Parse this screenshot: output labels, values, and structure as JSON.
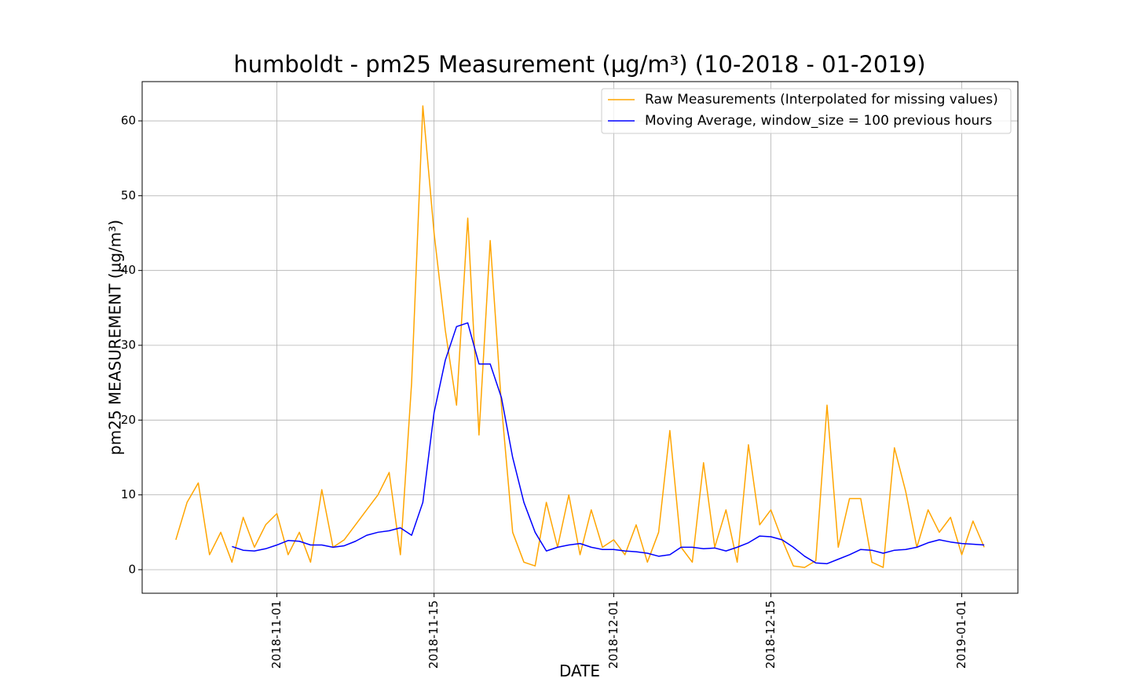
{
  "chart_data": {
    "type": "line",
    "title": "humboldt - pm25 Measurement (µg/m³) (10-2018 - 01-2019)",
    "xlabel": "DATE",
    "ylabel": "pm25 MEASUREMENT (µg/m³)",
    "x": [
      "2018-10-23",
      "2018-10-24",
      "2018-10-25",
      "2018-10-26",
      "2018-10-27",
      "2018-10-28",
      "2018-10-29",
      "2018-10-30",
      "2018-10-31",
      "2018-11-01",
      "2018-11-02",
      "2018-11-03",
      "2018-11-04",
      "2018-11-05",
      "2018-11-06",
      "2018-11-07",
      "2018-11-08",
      "2018-11-09",
      "2018-11-10",
      "2018-11-11",
      "2018-11-12",
      "2018-11-13",
      "2018-11-14",
      "2018-11-15",
      "2018-11-16",
      "2018-11-17",
      "2018-11-18",
      "2018-11-19",
      "2018-11-20",
      "2018-11-21",
      "2018-11-22",
      "2018-11-23",
      "2018-11-24",
      "2018-11-25",
      "2018-11-26",
      "2018-11-27",
      "2018-11-28",
      "2018-11-29",
      "2018-11-30",
      "2018-12-01",
      "2018-12-02",
      "2018-12-03",
      "2018-12-04",
      "2018-12-05",
      "2018-12-06",
      "2018-12-07",
      "2018-12-08",
      "2018-12-09",
      "2018-12-10",
      "2018-12-11",
      "2018-12-12",
      "2018-12-13",
      "2018-12-14",
      "2018-12-15",
      "2018-12-16",
      "2018-12-17",
      "2018-12-18",
      "2018-12-19",
      "2018-12-20",
      "2018-12-21",
      "2018-12-22",
      "2018-12-23",
      "2018-12-24",
      "2018-12-25",
      "2018-12-26",
      "2018-12-27",
      "2018-12-28",
      "2018-12-29",
      "2018-12-30",
      "2018-12-31",
      "2019-01-01",
      "2019-01-02",
      "2019-01-03"
    ],
    "series": [
      {
        "name": "Raw Measurements (Interpolated for missing values)",
        "color": "#ffa500",
        "values": [
          4,
          9,
          11.6,
          2,
          5,
          1,
          7,
          3,
          6,
          7.5,
          2,
          5,
          1,
          10.7,
          3,
          4,
          6,
          8,
          10,
          13,
          2,
          25,
          62,
          45,
          32,
          22,
          47,
          18,
          44,
          22,
          5,
          1,
          0.5,
          9,
          3,
          10,
          2,
          8,
          3,
          4,
          2,
          6,
          1,
          5,
          18.6,
          3,
          1,
          14.3,
          3,
          8,
          1,
          16.7,
          6,
          8,
          4,
          0.5,
          0.3,
          1.2,
          22,
          3,
          9.5,
          9.5,
          1,
          0.3,
          16.3,
          10.5,
          3,
          8,
          5,
          7,
          2,
          6.5,
          3
        ]
      },
      {
        "name": "Moving Average, window_size = 100 previous hours",
        "color": "#0000ff",
        "values": [
          null,
          null,
          null,
          null,
          null,
          3.1,
          2.6,
          2.5,
          2.8,
          3.3,
          3.9,
          3.8,
          3.3,
          3.3,
          3.0,
          3.2,
          3.8,
          4.6,
          5.0,
          5.2,
          5.6,
          4.6,
          9,
          21,
          28,
          32.5,
          33,
          27.5,
          27.5,
          23,
          15,
          9,
          5,
          2.5,
          3.0,
          3.3,
          3.5,
          3.0,
          2.7,
          2.7,
          2.5,
          2.4,
          2.2,
          1.8,
          2.0,
          3.0,
          3.0,
          2.8,
          2.9,
          2.5,
          3.0,
          3.6,
          4.5,
          4.4,
          4.0,
          3.0,
          1.8,
          0.9,
          0.8,
          1.4,
          2.0,
          2.7,
          2.6,
          2.2,
          2.6,
          2.7,
          3.0,
          3.6,
          4.0,
          3.7,
          3.5,
          3.4,
          3.3
        ]
      }
    ],
    "xlim": [
      "2018-10-20",
      "2019-01-06"
    ],
    "xticks": [
      "2018-11-01",
      "2018-11-15",
      "2018-12-01",
      "2018-12-15",
      "2019-01-01"
    ],
    "ylim": [
      -3.15,
      65.25
    ],
    "yticks": [
      0,
      10,
      20,
      30,
      40,
      50,
      60
    ],
    "grid": true,
    "legend": "upper right"
  }
}
